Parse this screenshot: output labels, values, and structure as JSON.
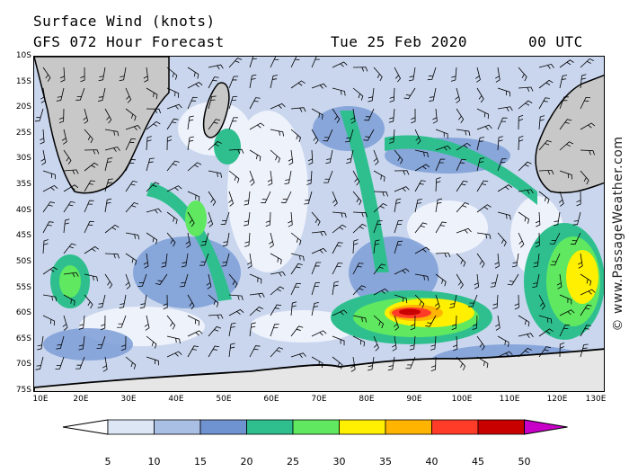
{
  "header": {
    "title": "Surface Wind (knots)",
    "subtitle": "GFS 072 Hour Forecast",
    "date": "Tue 25 Feb 2020",
    "time": "00 UTC"
  },
  "watermark": "© www.PassageWeather.com",
  "latitude_labels": [
    "10S",
    "15S",
    "20S",
    "25S",
    "30S",
    "35S",
    "40S",
    "45S",
    "50S",
    "55S",
    "60S",
    "65S",
    "70S",
    "75S"
  ],
  "longitude_labels": [
    "10E",
    "20E",
    "30E",
    "40E",
    "50E",
    "60E",
    "70E",
    "80E",
    "90E",
    "100E",
    "110E",
    "120E",
    "130E"
  ],
  "colorbar": {
    "ticks": [
      "5",
      "10",
      "15",
      "20",
      "25",
      "30",
      "35",
      "40",
      "45",
      "50"
    ],
    "colors": [
      "#ffffff",
      "#dce6f5",
      "#a9bfe4",
      "#6f93d0",
      "#2fbf8f",
      "#5fe860",
      "#ffef00",
      "#ffb400",
      "#ff3c28",
      "#c80000",
      "#c800c8"
    ]
  }
}
